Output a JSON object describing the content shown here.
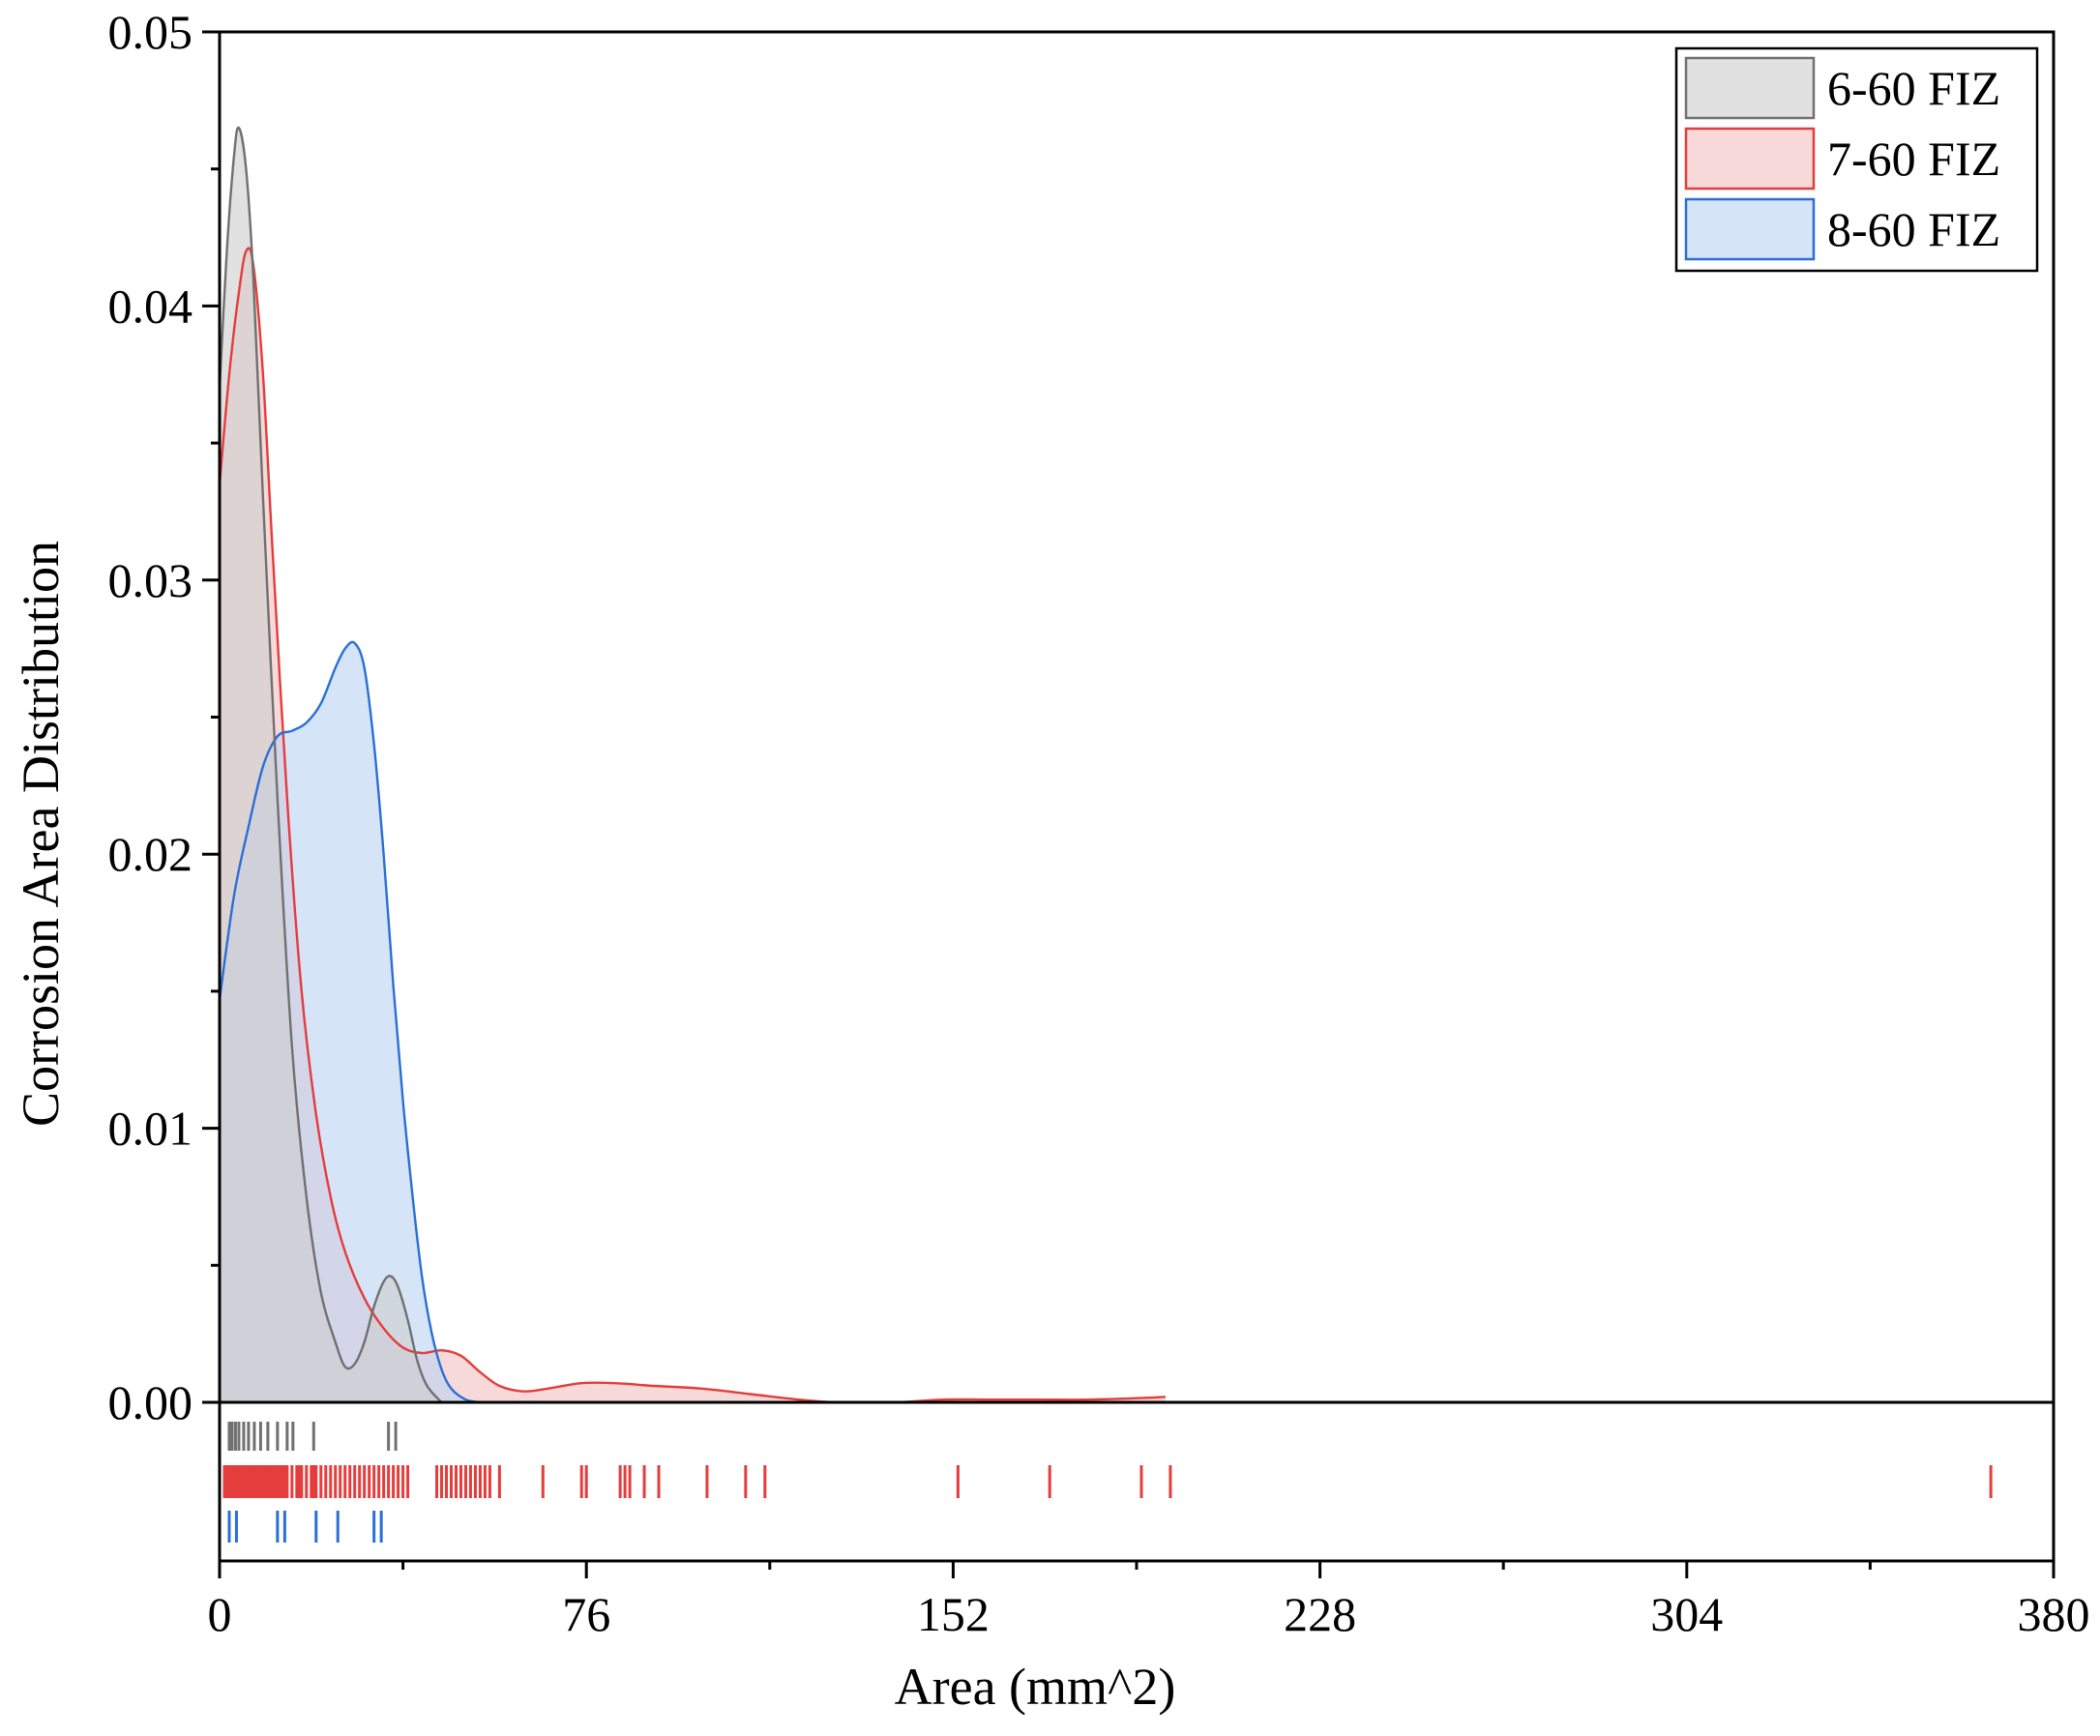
{
  "chart_data": {
    "type": "area",
    "subtype": "kernel-density-with-rug",
    "xlabel": "Area (mm^2)",
    "ylabel": "Corrosion Area Distribution",
    "xlim": [
      0,
      380
    ],
    "ylim": [
      0,
      0.05
    ],
    "x_ticks": [
      0,
      76,
      152,
      228,
      304,
      380
    ],
    "y_ticks": [
      0.0,
      0.01,
      0.02,
      0.03,
      0.04,
      0.05
    ],
    "y_tick_labels": [
      "0.00",
      "0.01",
      "0.02",
      "0.03",
      "0.04",
      "0.05"
    ],
    "grid": false,
    "legend_position": "top-right",
    "series": [
      {
        "name": "6-60 FIZ",
        "line_color": "#707070",
        "fill_color": "#cfcfcf",
        "density": [
          [
            0,
            0.037
          ],
          [
            1.5,
            0.042
          ],
          [
            3,
            0.0455
          ],
          [
            4,
            0.0465
          ],
          [
            5.5,
            0.045
          ],
          [
            7,
            0.041
          ],
          [
            9,
            0.033
          ],
          [
            12,
            0.022
          ],
          [
            15,
            0.013
          ],
          [
            18,
            0.0075
          ],
          [
            21,
            0.004
          ],
          [
            24,
            0.0022
          ],
          [
            26,
            0.0013
          ],
          [
            28,
            0.0014
          ],
          [
            30,
            0.0022
          ],
          [
            32,
            0.0035
          ],
          [
            34,
            0.0044
          ],
          [
            35.5,
            0.0046
          ],
          [
            37,
            0.0042
          ],
          [
            39,
            0.003
          ],
          [
            41,
            0.0015
          ],
          [
            43,
            0.0006
          ],
          [
            46,
            0.0
          ]
        ],
        "rug": [
          2,
          2.6,
          3.3,
          4,
          5,
          6,
          7.2,
          8.5,
          10,
          12,
          14,
          15.2,
          19.5,
          35,
          36.5
        ]
      },
      {
        "name": "7-60 FIZ",
        "line_color": "#e53c3c",
        "fill_color": "#f2c2c2",
        "density": [
          [
            0,
            0.0335
          ],
          [
            2,
            0.0375
          ],
          [
            4,
            0.0405
          ],
          [
            5.5,
            0.042
          ],
          [
            7,
            0.0415
          ],
          [
            9,
            0.0375
          ],
          [
            11,
            0.031
          ],
          [
            14,
            0.022
          ],
          [
            17,
            0.015
          ],
          [
            20,
            0.0105
          ],
          [
            23,
            0.0075
          ],
          [
            26,
            0.0055
          ],
          [
            30,
            0.0038
          ],
          [
            34,
            0.0027
          ],
          [
            38,
            0.002
          ],
          [
            42,
            0.0018
          ],
          [
            46,
            0.0019
          ],
          [
            50,
            0.0017
          ],
          [
            54,
            0.0011
          ],
          [
            58,
            0.0006
          ],
          [
            63,
            0.0004
          ],
          [
            68,
            0.0005
          ],
          [
            75,
            0.0007
          ],
          [
            82,
            0.0007
          ],
          [
            90,
            0.0006
          ],
          [
            100,
            0.0005
          ],
          [
            110,
            0.0003
          ],
          [
            120,
            0.0001
          ],
          [
            128,
            0.0
          ],
          [
            140,
            0.0
          ],
          [
            150,
            0.0001
          ],
          [
            160,
            0.0001
          ],
          [
            170,
            0.0001
          ],
          [
            180,
            0.0001
          ],
          [
            190,
            0.00015
          ],
          [
            196,
            0.0002
          ]
        ],
        "rug": [
          1,
          1.5,
          2,
          2.5,
          3,
          3.5,
          4,
          4.5,
          5,
          5.5,
          6,
          6.5,
          7,
          7.5,
          8,
          8.5,
          9,
          9.5,
          10,
          10.5,
          11,
          11.5,
          12,
          12.5,
          13,
          13.5,
          14,
          15,
          16,
          16.5,
          17,
          18,
          19,
          19.5,
          20,
          21,
          22,
          23,
          24,
          25,
          26,
          27,
          28,
          29,
          30,
          31,
          32,
          33,
          34,
          35,
          36,
          37,
          38,
          39,
          45,
          46,
          47,
          48,
          49,
          50,
          51,
          52,
          53,
          54,
          55,
          56,
          58,
          67,
          75,
          76,
          83,
          84,
          85,
          88,
          91,
          101,
          109,
          113,
          153,
          172,
          191,
          197,
          367
        ]
      },
      {
        "name": "8-60 FIZ",
        "line_color": "#2a6fd6",
        "fill_color": "#bcd3f0",
        "density": [
          [
            0,
            0.0147
          ],
          [
            3,
            0.0185
          ],
          [
            6,
            0.021
          ],
          [
            9,
            0.0232
          ],
          [
            12,
            0.0243
          ],
          [
            15,
            0.0245
          ],
          [
            18,
            0.0248
          ],
          [
            21,
            0.0255
          ],
          [
            24,
            0.0268
          ],
          [
            26,
            0.0275
          ],
          [
            28,
            0.0277
          ],
          [
            30,
            0.0268
          ],
          [
            32,
            0.024
          ],
          [
            34,
            0.02
          ],
          [
            36,
            0.0152
          ],
          [
            38,
            0.011
          ],
          [
            40,
            0.0075
          ],
          [
            42,
            0.0045
          ],
          [
            44,
            0.0025
          ],
          [
            46,
            0.0012
          ],
          [
            48,
            0.0005
          ],
          [
            51,
            0.0001
          ],
          [
            54,
            0.0
          ]
        ],
        "rug": [
          2,
          3.5,
          12,
          13.5,
          20,
          24.5,
          32,
          33.5
        ]
      }
    ]
  }
}
